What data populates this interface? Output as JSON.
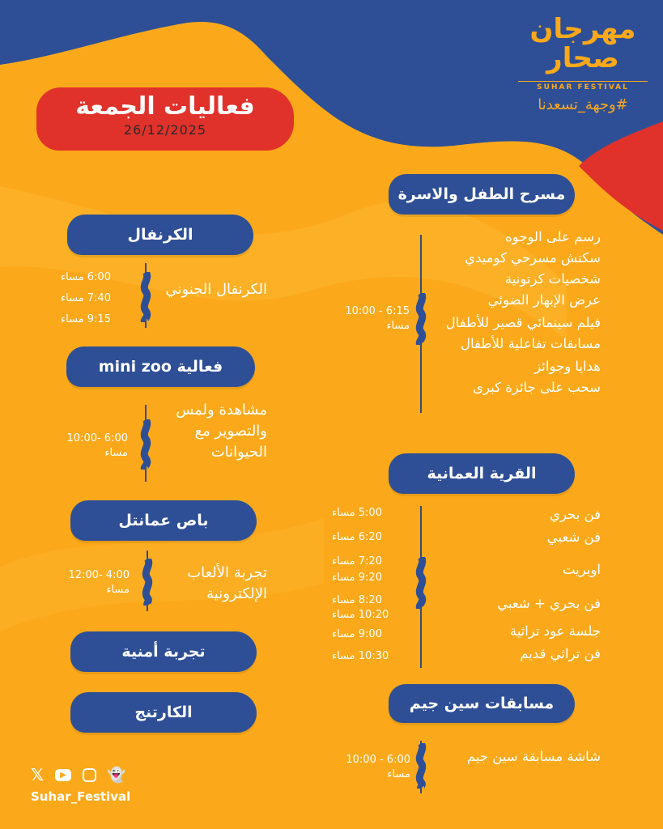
{
  "colors": {
    "background": "#FBA91A",
    "blue": "#2E4F96",
    "red": "#E0322B"
  },
  "logo": {
    "arabic": "مهرجان صحار",
    "english": "SUHAR FESTIVAL",
    "hashtag": "#وجهة_تسعدنا"
  },
  "header": {
    "title": "فعاليات الجمعة",
    "date": "26/12/2025"
  },
  "right": {
    "child_theatre": {
      "label": "مسرح الطفل والاسرة",
      "items": [
        "رسم على الوجوه",
        "سكتش مسرحي كوميدي",
        "شخصيات كرتونية",
        "عرض الإبهار الضوئي",
        "فيلم سينمائي قصير للأطفال",
        "مسابقات تفاعلية للأطفال",
        "هدايا وجوائز",
        "سحب على جائزة كبرى"
      ],
      "time": "10:00 - 6:15",
      "period": "مساء"
    },
    "omani_village": {
      "label": "القرية العمانية",
      "rows": [
        {
          "item": "فن بحري",
          "time": "5:00 مساء"
        },
        {
          "item": "فن شعبي",
          "time": "6:20 مساء"
        },
        {
          "item": "اوبريت",
          "time": "7:20 مساء",
          "time2": "9:20 مساء"
        },
        {
          "item": "فن بحري + شعبي",
          "time": "8:20 مساء",
          "time2": "10:20 مساء"
        },
        {
          "item": "جلسة عود تراثية",
          "time": "9:00 مساء"
        },
        {
          "item": "فن تراثي قديم",
          "time": "10:30 مساء"
        }
      ]
    },
    "sin_jim": {
      "label": "مسابقات سين جيم",
      "item": "شاشة مسابقة سين جيم",
      "time": "10:00 - 6:00",
      "period": "مساء"
    }
  },
  "left": {
    "carnival": {
      "label": "الكرنفال",
      "item": "الكرنفال الجنوني",
      "times": [
        "6:00 مساء",
        "7:40 مساء",
        "9:15 مساء"
      ]
    },
    "mini_zoo": {
      "label": "فعالية mini zoo",
      "item": "مشاهدة ولمس والتصوير مع الحيوانات",
      "time": "10:00- 6:00",
      "period": "مساء"
    },
    "omantel_bus": {
      "label": "باص عمانتل",
      "item": "تجربة الألعاب الإلكترونية",
      "time": "12:00- 4:00",
      "period": "مساء"
    },
    "security": {
      "label": "تجربة أمنية"
    },
    "karting": {
      "label": "الكارتنج"
    }
  },
  "social": {
    "handle": "Suhar_Festival",
    "icons": [
      "x-icon",
      "youtube-icon",
      "instagram-icon",
      "snapchat-icon"
    ]
  }
}
